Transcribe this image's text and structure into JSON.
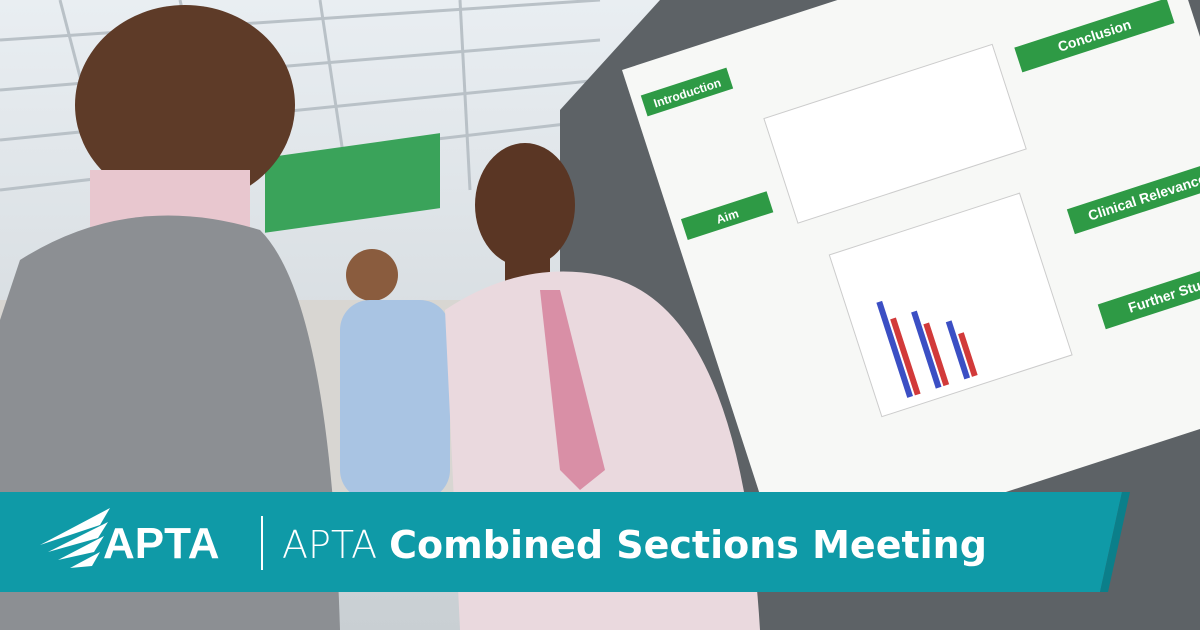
{
  "banner": {
    "logo": "APTA",
    "title_light": "APTA",
    "title_bold": "Combined Sections Meeting"
  },
  "poster": {
    "headings": [
      "Introduction",
      "Aim",
      "Conclusion",
      "Clinical Relevance",
      "Further Studies"
    ]
  }
}
